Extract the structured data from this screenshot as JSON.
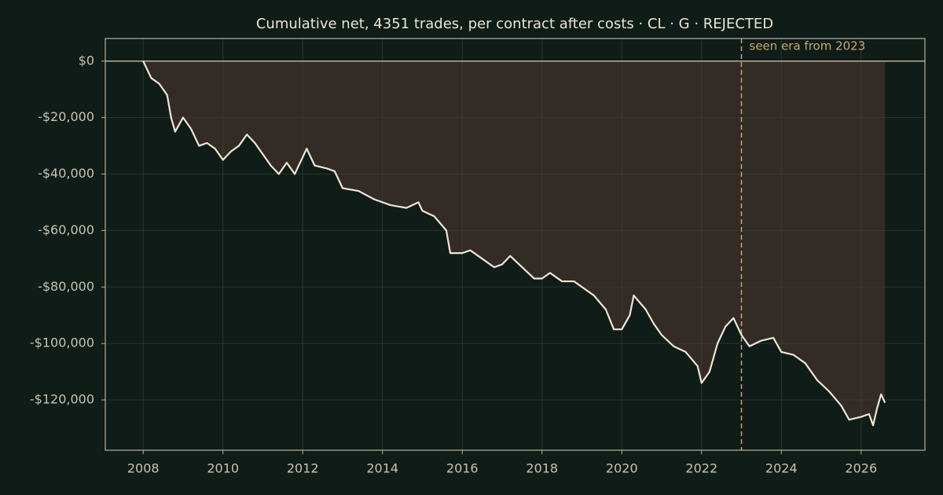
{
  "chart_data": {
    "type": "line",
    "title": "Cumulative net, 4351 trades, per contract after costs  ·  CL · G · REJECTED",
    "annotation": "seen era from 2023",
    "vline_x": 2023,
    "xlim": [
      2007.05,
      2027.6
    ],
    "ylim": [
      -137800,
      8000
    ],
    "xticks": [
      2008,
      2010,
      2012,
      2014,
      2016,
      2018,
      2020,
      2022,
      2024,
      2026
    ],
    "yticks": [
      {
        "value": 0,
        "label": "$0"
      },
      {
        "value": -20000,
        "label": "-$20,000"
      },
      {
        "value": -40000,
        "label": "-$40,000"
      },
      {
        "value": -60000,
        "label": "-$60,000"
      },
      {
        "value": -80000,
        "label": "-$80,000"
      },
      {
        "value": -100000,
        "label": "-$100,000"
      },
      {
        "value": -120000,
        "label": "-$120,000"
      }
    ],
    "grid": true,
    "color": "#eee6d6",
    "fill_color": "#332b26",
    "x": [
      2008.0,
      2008.2,
      2008.4,
      2008.6,
      2008.7,
      2008.8,
      2009.0,
      2009.2,
      2009.4,
      2009.6,
      2009.8,
      2010.0,
      2010.2,
      2010.4,
      2010.6,
      2010.8,
      2011.0,
      2011.2,
      2011.4,
      2011.6,
      2011.8,
      2012.0,
      2012.1,
      2012.3,
      2012.6,
      2012.8,
      2013.0,
      2013.4,
      2013.8,
      2014.2,
      2014.6,
      2014.9,
      2015.0,
      2015.3,
      2015.6,
      2015.7,
      2016.0,
      2016.2,
      2016.5,
      2016.8,
      2017.0,
      2017.2,
      2017.5,
      2017.8,
      2018.0,
      2018.2,
      2018.5,
      2018.8,
      2019.0,
      2019.3,
      2019.6,
      2019.8,
      2020.0,
      2020.2,
      2020.3,
      2020.6,
      2020.8,
      2021.0,
      2021.3,
      2021.6,
      2021.9,
      2022.0,
      2022.2,
      2022.4,
      2022.6,
      2022.8,
      2023.0,
      2023.2,
      2023.5,
      2023.8,
      2024.0,
      2024.3,
      2024.6,
      2024.9,
      2025.2,
      2025.5,
      2025.7,
      2026.0,
      2026.2,
      2026.3,
      2026.4,
      2026.5,
      2026.6
    ],
    "values": [
      0,
      -6000,
      -8000,
      -12000,
      -20000,
      -25000,
      -20000,
      -24000,
      -30000,
      -29000,
      -31000,
      -35000,
      -32000,
      -30000,
      -26000,
      -29000,
      -33000,
      -37000,
      -40000,
      -36000,
      -40000,
      -34000,
      -31000,
      -37000,
      -38000,
      -39000,
      -45000,
      -46000,
      -49000,
      -51000,
      -52000,
      -50000,
      -53000,
      -55000,
      -60000,
      -68000,
      -68000,
      -67000,
      -70000,
      -73000,
      -72000,
      -69000,
      -73000,
      -77000,
      -77000,
      -75000,
      -78000,
      -78000,
      -80000,
      -83000,
      -88000,
      -95000,
      -95000,
      -90000,
      -83000,
      -88000,
      -93000,
      -97000,
      -101000,
      -103000,
      -108000,
      -114000,
      -110000,
      -100000,
      -94000,
      -91000,
      -97000,
      -101000,
      -99000,
      -98000,
      -103000,
      -104000,
      -107000,
      -113000,
      -117000,
      -122000,
      -127000,
      -126000,
      -125000,
      -129000,
      -123000,
      -118000,
      -121000
    ]
  }
}
